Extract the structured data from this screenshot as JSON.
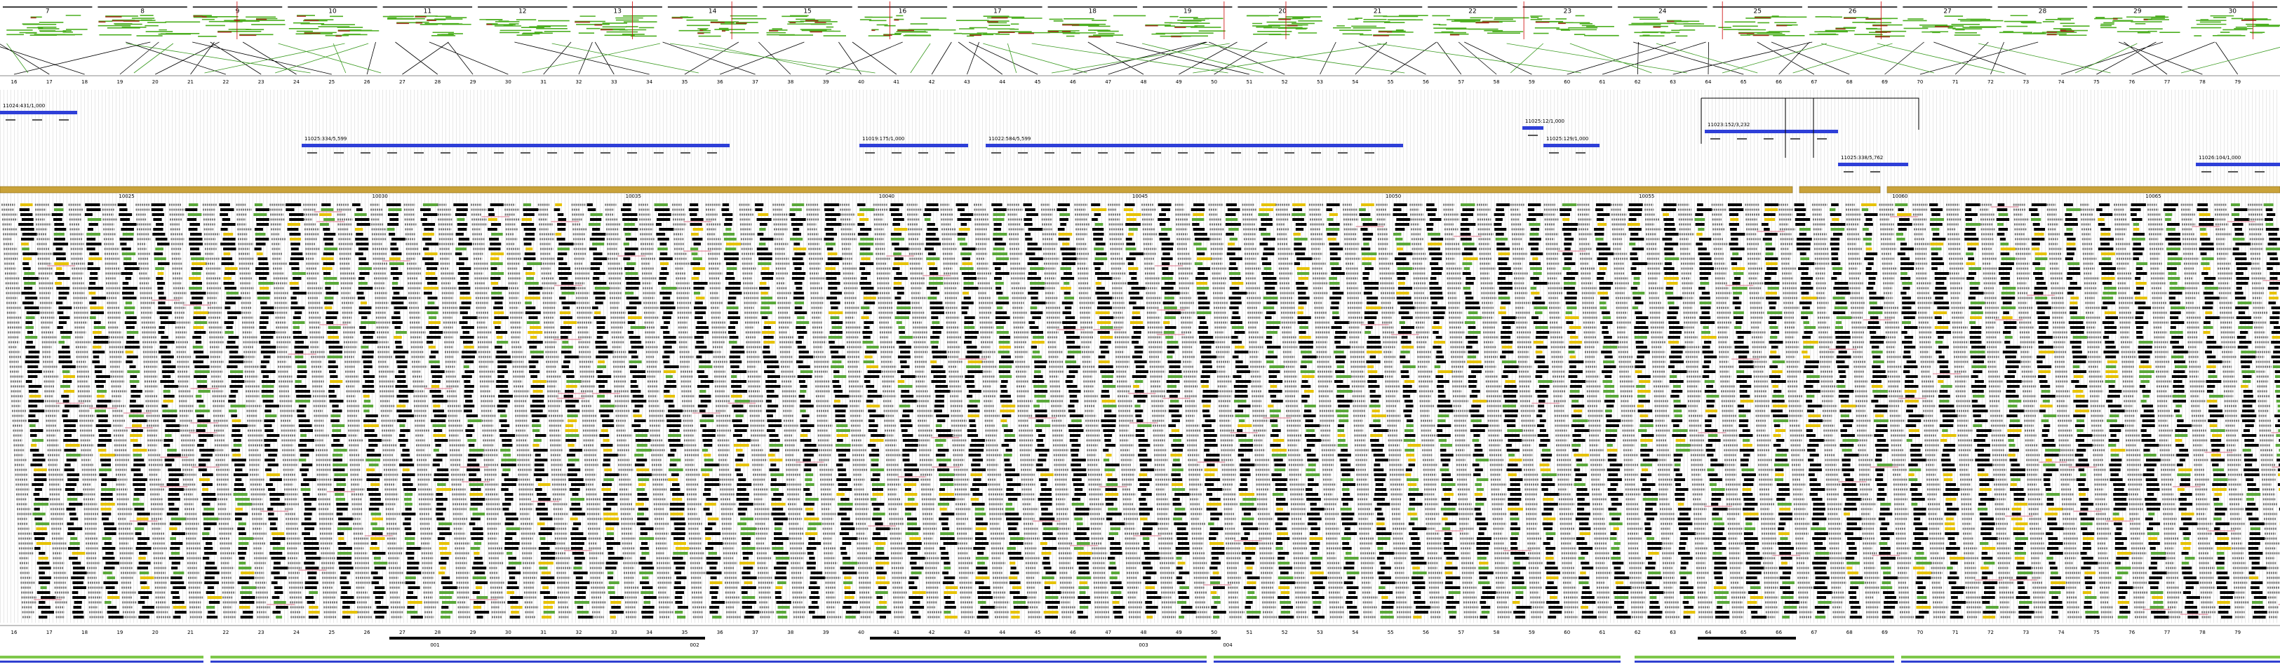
{
  "top_contigs": [
    "7",
    "8",
    "9",
    "10",
    "11",
    "12",
    "13",
    "14",
    "15",
    "16",
    "17",
    "18",
    "19",
    "20",
    "21",
    "22",
    "23",
    "24",
    "25",
    "26",
    "27",
    "28",
    "29",
    "30"
  ],
  "ruler": [
    "16",
    "17",
    "18",
    "19",
    "20",
    "21",
    "22",
    "23",
    "24",
    "25",
    "26",
    "27",
    "28",
    "29",
    "30",
    "31",
    "32",
    "33",
    "34",
    "35",
    "36",
    "37",
    "38",
    "39",
    "40",
    "41",
    "42",
    "43",
    "44",
    "45",
    "46",
    "47",
    "48",
    "49",
    "50",
    "51",
    "52",
    "53",
    "54",
    "55",
    "56",
    "57",
    "58",
    "59",
    "60",
    "61",
    "62",
    "63",
    "64",
    "65",
    "66",
    "67",
    "68",
    "69",
    "70",
    "71",
    "72",
    "73",
    "74",
    "75",
    "76",
    "77",
    "78",
    "79"
  ],
  "contig_bars": [
    {
      "label": "11024:431/1,000"
    },
    {
      "label": "11025:334/5,599"
    },
    {
      "label": "11019:175/1,000"
    },
    {
      "label": "11022:584/5,599"
    },
    {
      "label": "11025:12/1,000"
    },
    {
      "label": "11025:129/1,000"
    },
    {
      "label": "11023:152/3,232"
    },
    {
      "label": "11025:338/5,762"
    },
    {
      "label": "11026:104/1,000"
    }
  ],
  "gold_labels": [
    "10025",
    "10030",
    "10035",
    "10040",
    "10045",
    "10050",
    "10055",
    "10060",
    "10065"
  ],
  "bottom_labels": [
    "001",
    "002",
    "003",
    "004"
  ]
}
